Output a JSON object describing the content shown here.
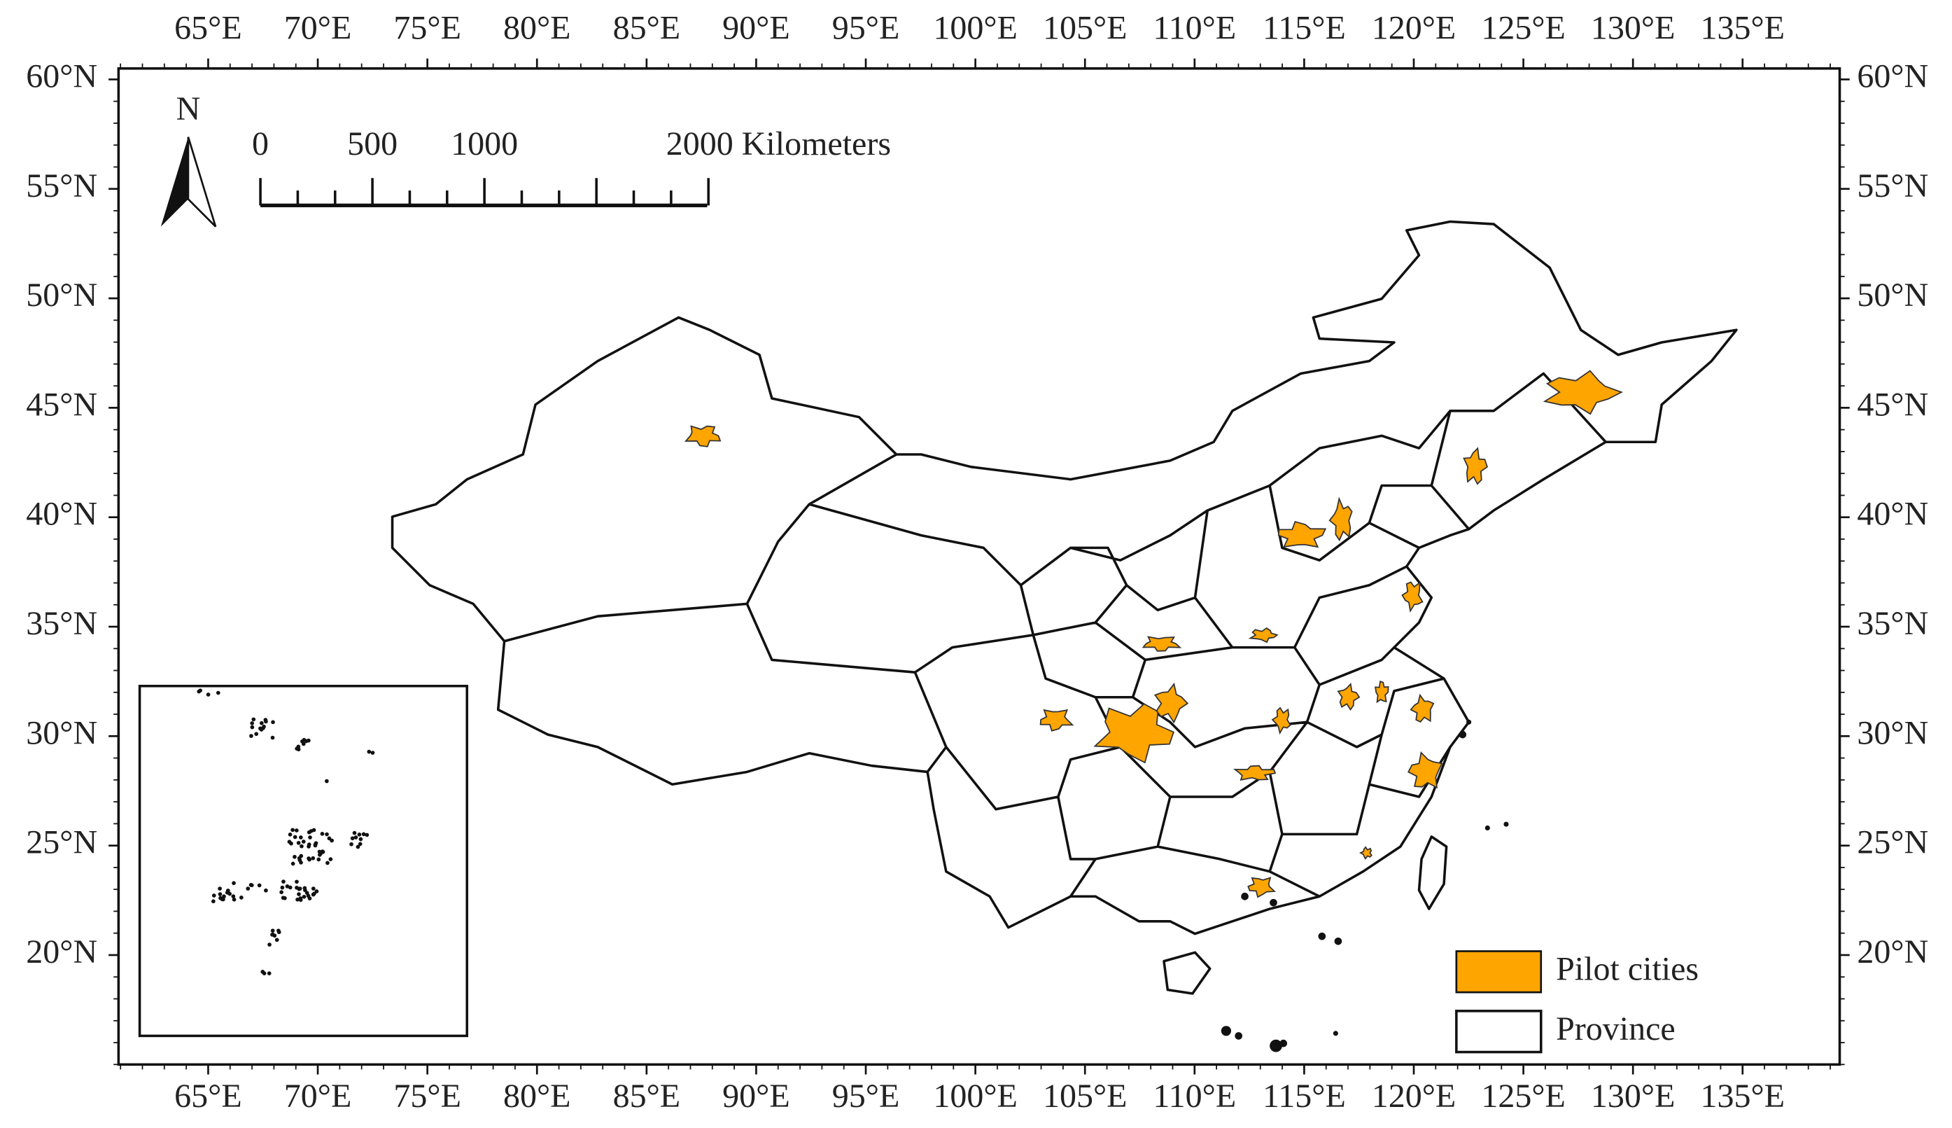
{
  "map": {
    "xlim": [
      60.91,
      139.43
    ],
    "ylim": [
      15.0,
      60.5
    ],
    "lon_ticks": [
      {
        "value": 65,
        "label": "65°E"
      },
      {
        "value": 70,
        "label": "70°E"
      },
      {
        "value": 75,
        "label": "75°E"
      },
      {
        "value": 80,
        "label": "80°E"
      },
      {
        "value": 85,
        "label": "85°E"
      },
      {
        "value": 90,
        "label": "90°E"
      },
      {
        "value": 95,
        "label": "95°E"
      },
      {
        "value": 100,
        "label": "100°E"
      },
      {
        "value": 105,
        "label": "105°E"
      },
      {
        "value": 110,
        "label": "110°E"
      },
      {
        "value": 115,
        "label": "115°E"
      },
      {
        "value": 120,
        "label": "120°E"
      },
      {
        "value": 125,
        "label": "125°E"
      },
      {
        "value": 130,
        "label": "130°E"
      },
      {
        "value": 135,
        "label": "135°E"
      }
    ],
    "lat_ticks": [
      {
        "value": 20,
        "label": "20°N"
      },
      {
        "value": 25,
        "label": "25°N"
      },
      {
        "value": 30,
        "label": "30°N"
      },
      {
        "value": 35,
        "label": "35°N"
      },
      {
        "value": 40,
        "label": "40°N"
      },
      {
        "value": 45,
        "label": "45°N"
      },
      {
        "value": 50,
        "label": "50°N"
      },
      {
        "value": 55,
        "label": "55°N"
      },
      {
        "value": 60,
        "label": "60°N"
      }
    ],
    "north_label": "N",
    "scale_labels": [
      "0",
      "500",
      "1000",
      "2000 Kilometers"
    ],
    "legend": [
      {
        "label": "Pilot cities",
        "color": "#FFA500"
      },
      {
        "label": "Province",
        "color": "#ffffff"
      }
    ]
  }
}
